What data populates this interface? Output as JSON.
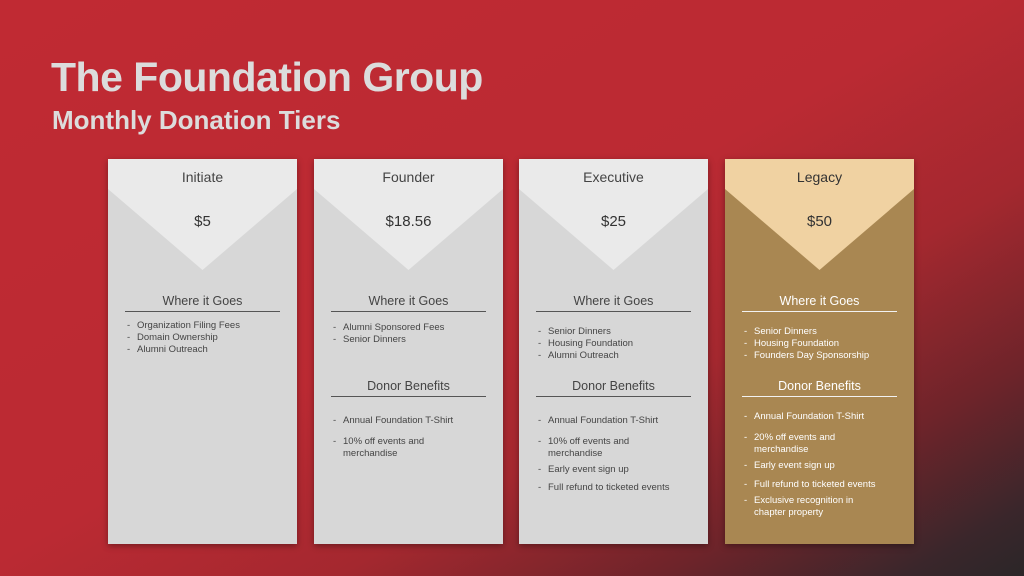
{
  "header": {
    "title": "The Foundation Group",
    "subtitle": "Monthly Donation Tiers"
  },
  "sections": {
    "where": "Where it Goes",
    "benefits": "Donor Benefits"
  },
  "tiers": [
    {
      "name": "Initiate",
      "price": "$5",
      "where": [
        "Organization Filing Fees",
        "Domain Ownership",
        "Alumni Outreach"
      ],
      "benefits": []
    },
    {
      "name": "Founder",
      "price": "$18.56",
      "where": [
        "Alumni Sponsored Fees",
        "Senior Dinners"
      ],
      "benefits": [
        "Annual Foundation T-Shirt",
        "10% off events and merchandise"
      ]
    },
    {
      "name": "Executive",
      "price": "$25",
      "where": [
        "Senior Dinners",
        "Housing Foundation",
        "Alumni Outreach"
      ],
      "benefits": [
        "Annual Foundation T-Shirt",
        "10% off events and merchandise",
        "Early event sign up",
        "Full refund to ticketed events"
      ]
    },
    {
      "name": "Legacy",
      "price": "$50",
      "where": [
        "Senior Dinners",
        "Housing Foundation",
        "Founders Day Sponsorship"
      ],
      "benefits": [
        "Annual Foundation T-Shirt",
        "20% off events and merchandise",
        "Early event sign up",
        "Full refund to ticketed events",
        "Exclusive recognition in chapter property"
      ]
    }
  ],
  "colors": {
    "background": "#bb2a33",
    "card": "#d7d7d7",
    "card_header": "#eaeaea",
    "legacy_card": "#a98752",
    "legacy_header": "#f0d2a2",
    "title_text": "#dcdcdc"
  }
}
